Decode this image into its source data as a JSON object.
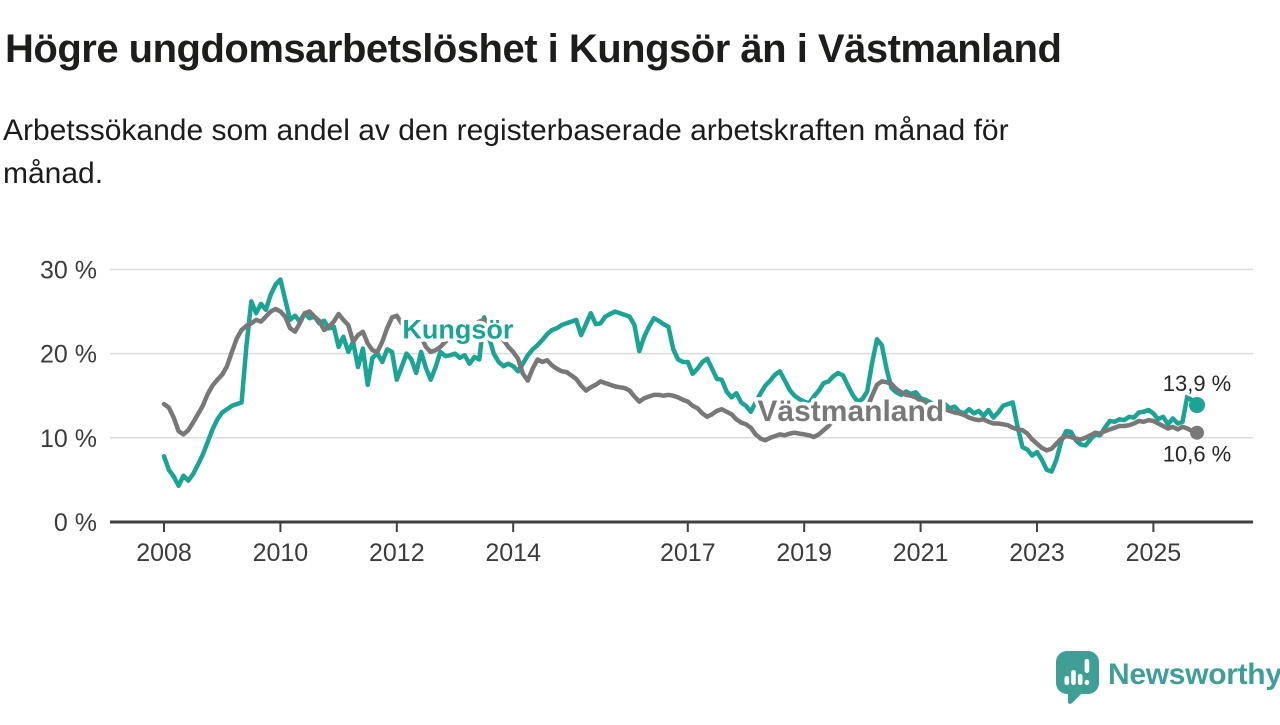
{
  "header": {
    "title": "Högre ungdomsarbetslöshet i Kungsör än i Västmanland",
    "subtitle": "Arbetssökande som andel av den registerbaserade arbetskraften månad för\nmånad."
  },
  "footer": {
    "brand": "Newsworthy"
  },
  "chart_data": {
    "type": "line",
    "title": "Högre ungdomsarbetslöshet i Kungsör än i Västmanland",
    "subtitle": "Arbetssökande som andel av den registerbaserade arbetskraften månad för månad.",
    "unit": "%",
    "x_start": 2008.0,
    "x_interval_months": 1,
    "x_end_label_values": [
      "13,9 %",
      "10,6 %"
    ],
    "ylim": [
      0,
      31
    ],
    "grid": "horizontal",
    "legend_position": "inline-labels",
    "colors": {
      "grid": "#dcdcdc",
      "axis": "#3f3f3f",
      "axis_text": "#3c3c3c",
      "value_label": "#262626",
      "kungsor": "#1ba394",
      "vastmanland": "#787878",
      "brand": "#3f9e96"
    },
    "yticks": [
      {
        "v": 0,
        "label": "0 %"
      },
      {
        "v": 10,
        "label": "10 %"
      },
      {
        "v": 20,
        "label": "20 %"
      },
      {
        "v": 30,
        "label": "30 %"
      }
    ],
    "xticks": [
      {
        "v": 2008,
        "label": "2008"
      },
      {
        "v": 2010,
        "label": "2010"
      },
      {
        "v": 2012,
        "label": "2012"
      },
      {
        "v": 2014,
        "label": "2014"
      },
      {
        "v": 2017,
        "label": "2017"
      },
      {
        "v": 2019,
        "label": "2019"
      },
      {
        "v": 2021,
        "label": "2021"
      },
      {
        "v": 2023,
        "label": "2023"
      },
      {
        "v": 2025,
        "label": "2025"
      }
    ],
    "series": [
      {
        "id": "kungsor",
        "name": "Kungsör",
        "color": "#1ba394",
        "line_width": 4.5,
        "label": {
          "x": 2013.05,
          "y": 21.8,
          "size": 27
        },
        "end": {
          "dot_radius": 8,
          "label": "13,9 %",
          "position": "above"
        },
        "values": [
          7.8,
          6.2,
          5.4,
          4.3,
          5.5,
          4.9,
          5.7,
          6.8,
          8.0,
          9.5,
          11.0,
          12.2,
          13.0,
          13.4,
          13.8,
          14.0,
          14.2,
          21.0,
          26.2,
          24.8,
          25.9,
          25.2,
          27.0,
          28.2,
          28.8,
          26.4,
          24.0,
          24.5,
          23.8,
          24.8,
          24.2,
          24.4,
          23.6,
          23.9,
          23.0,
          23.2,
          20.8,
          22.0,
          20.2,
          21.4,
          18.4,
          20.6,
          16.3,
          19.5,
          20.0,
          19.0,
          20.5,
          20.2,
          16.9,
          18.4,
          20.0,
          19.3,
          17.7,
          20.2,
          18.3,
          16.9,
          18.4,
          20.2,
          19.7,
          19.8,
          20.0,
          19.5,
          19.8,
          18.8,
          19.6,
          19.3,
          24.3,
          22.0,
          20.0,
          19.0,
          18.5,
          18.8,
          18.5,
          17.9,
          18.8,
          19.8,
          20.5,
          21.0,
          21.6,
          22.3,
          22.8,
          23.0,
          23.4,
          23.6,
          23.8,
          24.0,
          22.2,
          23.5,
          24.8,
          23.5,
          23.6,
          24.4,
          24.7,
          25.0,
          24.8,
          24.6,
          24.4,
          23.4,
          20.3,
          22.0,
          23.2,
          24.2,
          23.9,
          23.5,
          23.2,
          20.5,
          19.3,
          19.0,
          19.0,
          17.6,
          18.2,
          19.0,
          19.4,
          18.2,
          17.0,
          16.9,
          15.5,
          14.8,
          15.3,
          14.2,
          13.8,
          13.1,
          14.2,
          15.3,
          16.2,
          16.8,
          17.5,
          17.9,
          16.8,
          15.7,
          15.0,
          14.6,
          14.3,
          14.1,
          14.9,
          15.6,
          16.5,
          16.7,
          17.3,
          17.7,
          17.4,
          16.2,
          15.1,
          14.3,
          14.6,
          15.5,
          18.9,
          21.7,
          21.0,
          18.1,
          15.9,
          15.4,
          15.1,
          15.5,
          15.2,
          15.4,
          14.7,
          14.5,
          14.2,
          13.9,
          14.4,
          14.0,
          13.5,
          13.7,
          13.1,
          12.9,
          13.4,
          12.9,
          13.2,
          12.6,
          13.3,
          12.4,
          13.0,
          13.8,
          14.0,
          14.2,
          11.3,
          8.9,
          8.6,
          7.9,
          8.3,
          7.4,
          6.2,
          6.0,
          7.4,
          9.6,
          10.8,
          10.7,
          9.7,
          9.2,
          9.1,
          9.8,
          10.4,
          10.3,
          11.2,
          12.0,
          11.9,
          12.2,
          12.1,
          12.5,
          12.4,
          13.0,
          13.1,
          13.3,
          12.9,
          12.2,
          12.5,
          11.6,
          12.3,
          11.7,
          11.9,
          14.9,
          14.4,
          13.9
        ]
      },
      {
        "id": "vastmanland",
        "name": "Västmanland",
        "color": "#787878",
        "line_width": 4.5,
        "label": {
          "x": 2019.8,
          "y": 12.0,
          "size": 30
        },
        "end": {
          "dot_radius": 7,
          "label": "10,6 %",
          "position": "below"
        },
        "values": [
          14.0,
          13.6,
          12.4,
          10.8,
          10.4,
          10.9,
          11.8,
          12.8,
          13.8,
          15.2,
          16.2,
          16.9,
          17.5,
          18.5,
          20.2,
          21.8,
          22.8,
          23.3,
          23.6,
          24.0,
          23.8,
          24.4,
          25.0,
          25.3,
          25.0,
          24.4,
          23.0,
          22.6,
          23.6,
          24.8,
          25.0,
          24.4,
          23.9,
          22.8,
          23.2,
          23.8,
          24.7,
          24.0,
          23.4,
          21.4,
          22.2,
          22.6,
          21.2,
          20.4,
          20.2,
          21.4,
          23.0,
          24.3,
          24.5,
          23.6,
          23.0,
          23.2,
          22.8,
          22.0,
          20.8,
          20.2,
          20.4,
          20.8,
          21.4,
          22.0,
          22.6,
          23.2,
          23.6,
          23.4,
          23.5,
          23.8,
          24.0,
          23.8,
          23.4,
          22.6,
          21.6,
          20.8,
          20.2,
          19.4,
          17.6,
          16.8,
          18.2,
          19.3,
          19.0,
          19.2,
          18.6,
          18.2,
          17.9,
          17.8,
          17.4,
          17.0,
          16.2,
          15.6,
          16.0,
          16.3,
          16.7,
          16.5,
          16.3,
          16.1,
          16.0,
          15.9,
          15.6,
          14.9,
          14.3,
          14.7,
          14.9,
          15.1,
          15.1,
          15.0,
          15.1,
          15.0,
          14.8,
          14.5,
          14.3,
          13.8,
          13.5,
          12.9,
          12.5,
          12.8,
          13.2,
          13.4,
          13.1,
          12.8,
          12.2,
          11.8,
          11.6,
          11.2,
          10.4,
          9.9,
          9.7,
          10.0,
          10.2,
          10.4,
          10.3,
          10.5,
          10.6,
          10.5,
          10.4,
          10.3,
          10.1,
          10.4,
          10.9,
          11.4,
          12.1,
          12.3,
          12.5,
          12.7,
          12.8,
          12.9,
          13.0,
          13.5,
          15.0,
          16.3,
          16.7,
          16.6,
          16.4,
          15.8,
          15.4,
          15.1,
          15.0,
          14.8,
          14.4,
          14.2,
          14.0,
          13.9,
          13.7,
          13.4,
          13.2,
          13.0,
          12.9,
          12.7,
          12.4,
          12.2,
          12.1,
          12.2,
          11.9,
          11.7,
          11.7,
          11.6,
          11.5,
          11.2,
          11.0,
          10.9,
          10.5,
          9.8,
          9.3,
          8.8,
          8.5,
          8.7,
          9.3,
          9.9,
          10.2,
          10.1,
          9.9,
          9.8,
          10.0,
          10.3,
          10.6,
          10.5,
          10.8,
          11.0,
          11.2,
          11.4,
          11.4,
          11.5,
          11.7,
          12.0,
          11.9,
          12.1,
          12.0,
          11.7,
          11.4,
          11.1,
          11.3,
          11.0,
          11.3,
          11.1,
          10.8,
          10.6
        ]
      }
    ]
  }
}
